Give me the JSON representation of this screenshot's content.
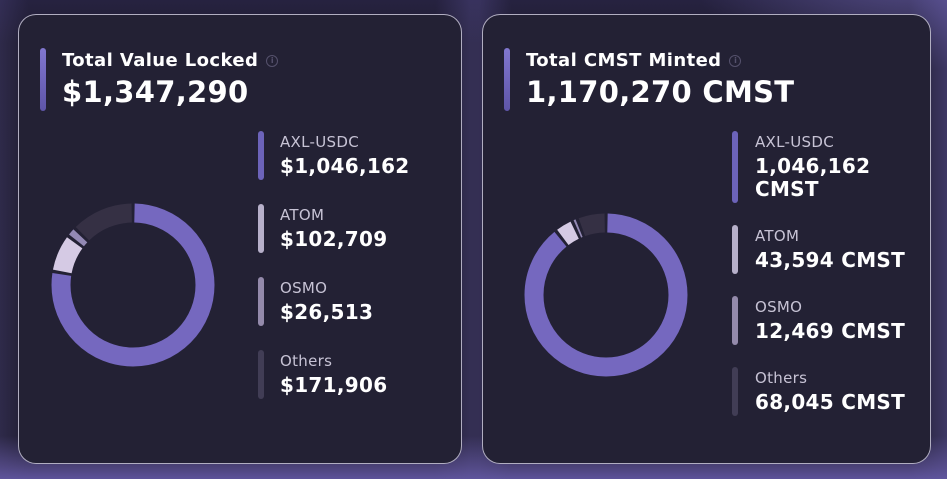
{
  "theme": {
    "accent": "#6f65c0",
    "card_bg": "#232134",
    "page_bg": "#201d31",
    "text_primary": "#ffffff",
    "text_secondary": "#c7c3d5"
  },
  "cards": [
    {
      "title": "Total Value Locked",
      "total": "$1,347,290",
      "legend": [
        {
          "label": "AXL-USDC",
          "value": "$1,046,162"
        },
        {
          "label": "ATOM",
          "value": "$102,709"
        },
        {
          "label": "OSMO",
          "value": "$26,513"
        },
        {
          "label": "Others",
          "value": "$171,906"
        }
      ]
    },
    {
      "title": "Total CMST Minted",
      "total": "1,170,270 CMST",
      "legend": [
        {
          "label": "AXL-USDC",
          "value": "1,046,162 CMST"
        },
        {
          "label": "ATOM",
          "value": "43,594 CMST"
        },
        {
          "label": "OSMO",
          "value": "12,469 CMST"
        },
        {
          "label": "Others",
          "value": "68,045 CMST"
        }
      ]
    }
  ],
  "chart_data": [
    {
      "type": "pie",
      "variant": "donut",
      "title": "Total Value Locked",
      "total_display": "$1,347,290",
      "total_value": 1347290,
      "labels": [
        "AXL-USDC",
        "ATOM",
        "OSMO",
        "Others"
      ],
      "values": [
        1046162,
        102709,
        26513,
        171906
      ],
      "percentages": [
        77.6,
        7.6,
        2.0,
        12.8
      ],
      "colors": [
        "#7568bf",
        "#d5cae4",
        "#9389b4",
        "#353044"
      ],
      "legend_colors": [
        "#6c63b9",
        "#b7b0ca",
        "#948aab",
        "#413d55"
      ],
      "start_angle_deg": 0,
      "direction": "clockwise",
      "legend_position": "right"
    },
    {
      "type": "pie",
      "variant": "donut",
      "title": "Total CMST Minted",
      "total_display": "1,170,270 CMST",
      "total_value": 1170270,
      "labels": [
        "AXL-USDC",
        "ATOM",
        "OSMO",
        "Others"
      ],
      "values": [
        1046162,
        43594,
        12469,
        68045
      ],
      "percentages": [
        89.4,
        3.7,
        1.1,
        5.8
      ],
      "colors": [
        "#7568bf",
        "#d5cae4",
        "#9389b4",
        "#353044"
      ],
      "legend_colors": [
        "#6c63b9",
        "#b7b0ca",
        "#948aab",
        "#413d55"
      ],
      "start_angle_deg": 0,
      "direction": "clockwise",
      "legend_position": "right"
    }
  ]
}
